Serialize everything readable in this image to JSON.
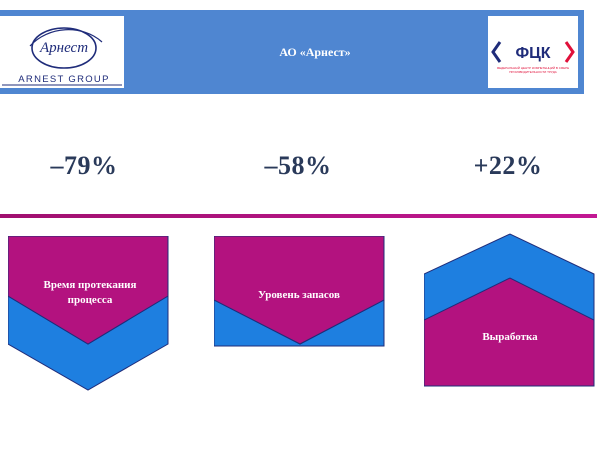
{
  "header": {
    "title": "АО «Арнест»",
    "logo_left": {
      "script": "Арнест",
      "caption": "ARNEST GROUP"
    },
    "logo_right": {
      "mark": "ФЦК",
      "tagline": "ФЕДЕРАЛЬНЫЙ ЦЕНТР КОМПЕТЕНЦИЙ В СФЕРЕ ПРОИЗВОДИТЕЛЬНОСТИ ТРУДА"
    }
  },
  "stats": [
    {
      "value": "–79%"
    },
    {
      "value": "–58%"
    },
    {
      "value": "+22%"
    }
  ],
  "cards": [
    {
      "label": "Время протекания процесса"
    },
    {
      "label": "Уровень запасов"
    },
    {
      "label": "Выработка"
    }
  ],
  "colors": {
    "header_bg": "#4f86d1",
    "magenta": "#b3127f",
    "blue": "#1e7fe0",
    "navy": "#1f2c7a",
    "divider_gradient": [
      "#a0106f",
      "#c21893"
    ]
  }
}
